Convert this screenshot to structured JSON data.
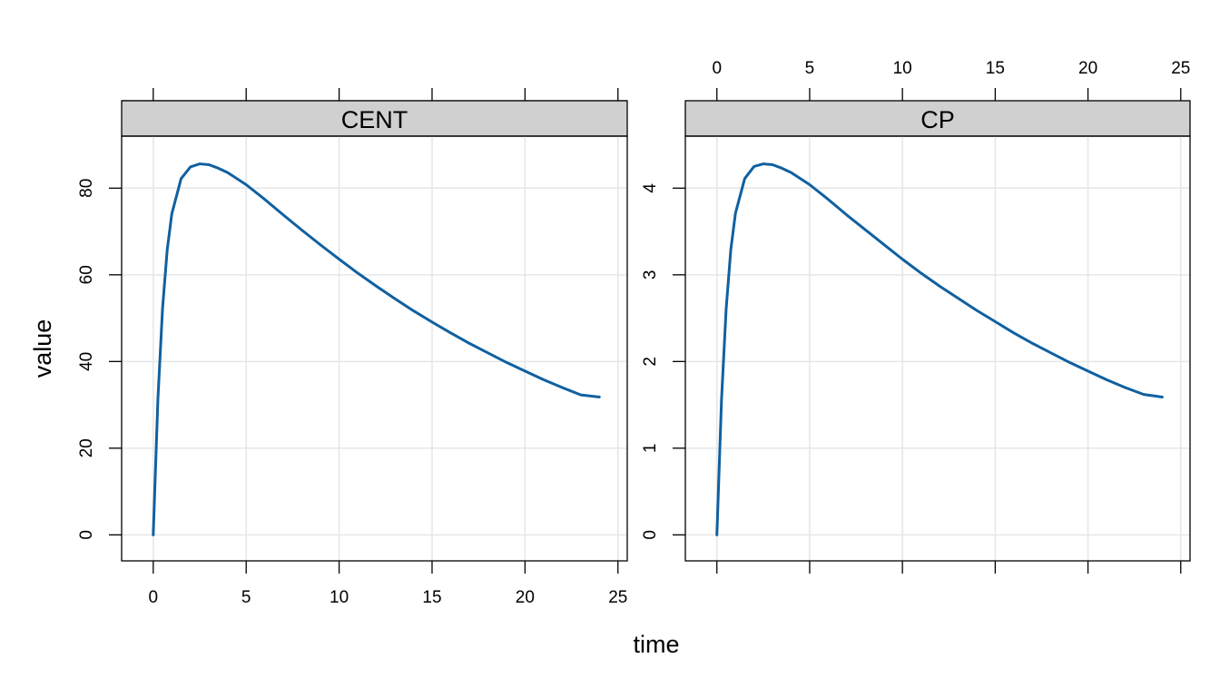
{
  "chart_data": {
    "type": "line",
    "layout": "lattice-panels",
    "xlabel": "time",
    "ylabel": "value",
    "grid": true,
    "line_color": "#1060A0",
    "strip_color": "#D0D0D0",
    "x_ticks": [
      "0",
      "5",
      "10",
      "15",
      "20",
      "25"
    ],
    "xlim": [
      -1.7,
      25.5
    ],
    "panels": [
      {
        "name": "CENT",
        "ylim": [
          -6,
          92
        ],
        "y_ticks": [
          "0",
          "20",
          "40",
          "60",
          "80"
        ],
        "x": [
          0,
          0.25,
          0.5,
          0.75,
          1,
          1.5,
          2,
          2.5,
          3,
          3.5,
          4,
          5,
          6,
          7,
          8,
          9,
          10,
          11,
          12,
          13,
          14,
          15,
          16,
          17,
          18,
          19,
          20,
          21,
          22,
          23,
          24
        ],
        "y": [
          0,
          31.2,
          52.2,
          65.7,
          74.1,
          82.2,
          84.9,
          85.6,
          85.4,
          84.6,
          83.6,
          80.8,
          77.4,
          73.8,
          70.3,
          66.9,
          63.6,
          60.4,
          57.4,
          54.5,
          51.7,
          49.1,
          46.6,
          44.2,
          42.0,
          39.8,
          37.8,
          35.8,
          34.0,
          32.3,
          31.8
        ]
      },
      {
        "name": "CP",
        "ylim": [
          -0.3,
          4.6
        ],
        "y_ticks": [
          "0",
          "1",
          "2",
          "3",
          "4"
        ],
        "x": [
          0,
          0.25,
          0.5,
          0.75,
          1,
          1.5,
          2,
          2.5,
          3,
          3.5,
          4,
          5,
          6,
          7,
          8,
          9,
          10,
          11,
          12,
          13,
          14,
          15,
          16,
          17,
          18,
          19,
          20,
          21,
          22,
          23,
          24
        ],
        "y": [
          0,
          1.56,
          2.61,
          3.29,
          3.71,
          4.11,
          4.25,
          4.28,
          4.27,
          4.23,
          4.18,
          4.04,
          3.87,
          3.69,
          3.52,
          3.35,
          3.18,
          3.02,
          2.87,
          2.73,
          2.59,
          2.46,
          2.33,
          2.21,
          2.1,
          1.99,
          1.89,
          1.79,
          1.7,
          1.62,
          1.59
        ]
      }
    ]
  }
}
